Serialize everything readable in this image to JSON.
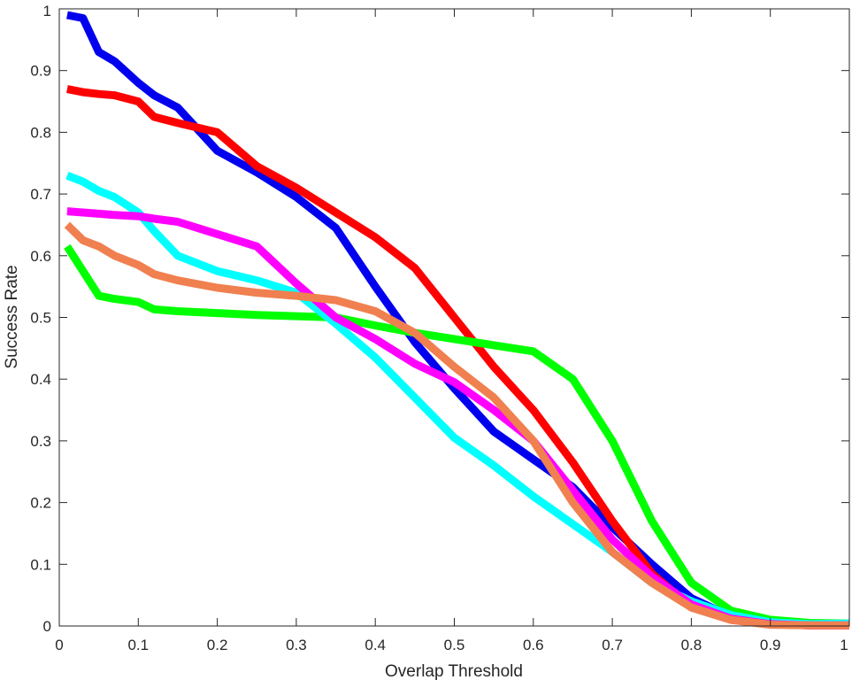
{
  "chart_data": {
    "type": "line",
    "title": "",
    "xlabel": "Overlap Threshold",
    "ylabel": "Success Rate",
    "xlim": [
      0,
      1
    ],
    "ylim": [
      0,
      1
    ],
    "grid": false,
    "x_ticks": [
      "0",
      "0.1",
      "0.2",
      "0.3",
      "0.4",
      "0.5",
      "0.6",
      "0.7",
      "0.8",
      "0.9",
      "1"
    ],
    "y_ticks": [
      "0",
      "0.1",
      "0.2",
      "0.3",
      "0.4",
      "0.5",
      "0.6",
      "0.7",
      "0.8",
      "0.9",
      "1"
    ],
    "x": [
      0.01,
      0.03,
      0.05,
      0.07,
      0.1,
      0.12,
      0.15,
      0.2,
      0.25,
      0.3,
      0.35,
      0.4,
      0.45,
      0.5,
      0.55,
      0.6,
      0.65,
      0.7,
      0.75,
      0.8,
      0.85,
      0.9,
      0.95,
      1.0
    ],
    "series": [
      {
        "color": "#0000ee",
        "values": [
          0.99,
          0.985,
          0.93,
          0.915,
          0.88,
          0.86,
          0.84,
          0.77,
          0.735,
          0.695,
          0.645,
          0.55,
          0.46,
          0.385,
          0.315,
          0.27,
          0.225,
          0.16,
          0.1,
          0.045,
          0.015,
          0.005,
          0.002,
          0.003
        ]
      },
      {
        "color": "#ff0000",
        "values": [
          0.87,
          0.865,
          0.862,
          0.86,
          0.85,
          0.825,
          0.815,
          0.8,
          0.745,
          0.71,
          0.67,
          0.63,
          0.58,
          0.5,
          0.42,
          0.35,
          0.265,
          0.17,
          0.085,
          0.03,
          0.01,
          0.003,
          0.001,
          0.001
        ]
      },
      {
        "color": "#00ff00",
        "values": [
          0.615,
          0.575,
          0.535,
          0.53,
          0.525,
          0.513,
          0.51,
          0.507,
          0.504,
          0.502,
          0.5,
          0.487,
          0.475,
          0.465,
          0.455,
          0.445,
          0.4,
          0.3,
          0.17,
          0.07,
          0.025,
          0.01,
          0.005,
          0.004
        ]
      },
      {
        "color": "#00ffff",
        "values": [
          0.73,
          0.72,
          0.705,
          0.695,
          0.67,
          0.64,
          0.6,
          0.575,
          0.56,
          0.54,
          0.49,
          0.435,
          0.37,
          0.305,
          0.26,
          0.21,
          0.165,
          0.12,
          0.07,
          0.04,
          0.018,
          0.006,
          0.003,
          0.004
        ]
      },
      {
        "color": "#ff00ff",
        "values": [
          0.672,
          0.67,
          0.668,
          0.666,
          0.664,
          0.66,
          0.655,
          0.635,
          0.615,
          0.555,
          0.5,
          0.465,
          0.425,
          0.395,
          0.35,
          0.3,
          0.22,
          0.14,
          0.08,
          0.035,
          0.012,
          0.003,
          0.001,
          0.001
        ]
      },
      {
        "color": "#f08050",
        "values": [
          0.65,
          0.625,
          0.615,
          0.6,
          0.585,
          0.57,
          0.56,
          0.548,
          0.54,
          0.535,
          0.528,
          0.51,
          0.475,
          0.42,
          0.37,
          0.3,
          0.2,
          0.12,
          0.07,
          0.03,
          0.01,
          0.002,
          0.001,
          0.001
        ]
      }
    ]
  }
}
